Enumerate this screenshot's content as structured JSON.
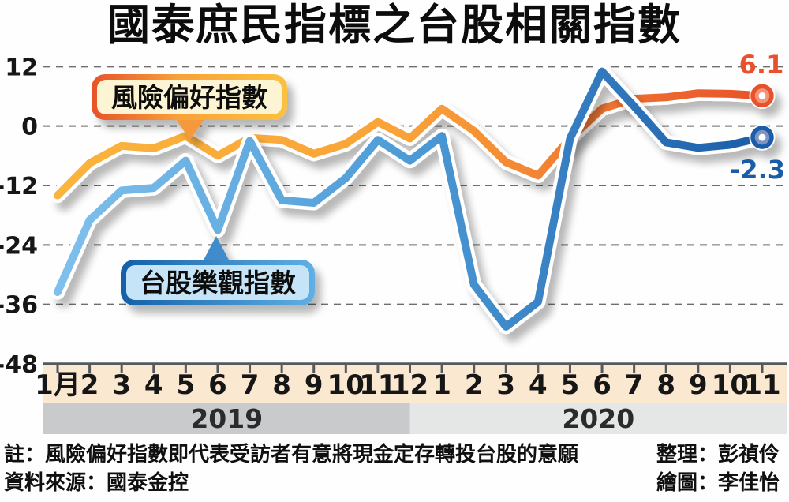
{
  "title": "國泰庶民指標之台股相關指數",
  "chart_data": {
    "type": "line",
    "title": "國泰庶民指標之台股相關指數",
    "x_labels": [
      "1月",
      "2",
      "3",
      "4",
      "5",
      "6",
      "7",
      "8",
      "9",
      "10",
      "11",
      "12",
      "1",
      "2",
      "3",
      "4",
      "5",
      "6",
      "7",
      "8",
      "9",
      "10",
      "11"
    ],
    "y_ticks": [
      "12",
      "0",
      "-12",
      "-24",
      "-36",
      "-48"
    ],
    "y_tick_values": [
      12,
      0,
      -12,
      -24,
      -36,
      -48
    ],
    "ylim": [
      -48,
      12
    ],
    "grid": "horizontal dashed",
    "legend_position": "callout bubbles on plot",
    "year_bands": [
      {
        "label": "2019",
        "from_month": 0,
        "to_month": 11
      },
      {
        "label": "2020",
        "from_month": 11,
        "to_month": 22
      }
    ],
    "series": [
      {
        "name": "風險偏好指數",
        "end_label": "6.1",
        "color_start": "#FBB43C",
        "color_mid": "#F9A238",
        "color_end": "#E8512B",
        "marker_ring": "#E8512B",
        "marker_fill": "#F2947A",
        "values": [
          -14,
          -7.5,
          -4,
          -4.5,
          -2,
          -6,
          -2.4,
          -2.8,
          -5.6,
          -3.6,
          0.8,
          -2.5,
          3.5,
          -1,
          -7.3,
          -10,
          -2.5,
          3.5,
          5.5,
          5.8,
          6.6,
          6.5,
          6.1
        ]
      },
      {
        "name": "台股樂觀指數",
        "end_label": "-2.3",
        "color_start": "#7FC0EC",
        "color_mid": "#4D9BD6",
        "color_end": "#1A5CA8",
        "marker_ring": "#1A5CA8",
        "marker_fill": "#8094C3",
        "values": [
          -33.5,
          -19,
          -13,
          -12.5,
          -7,
          -21,
          -3,
          -15,
          -15.5,
          -10.5,
          -2.8,
          -7,
          -2,
          -32,
          -40.5,
          -35.5,
          -2.5,
          11,
          4,
          -3.3,
          -4.4,
          -3.8,
          -2.3
        ]
      }
    ]
  },
  "colors": {
    "cream_band": "#FAE8D1",
    "band_2019": "#C9CACB",
    "band_2020": "#E5E6E6",
    "bubble_risk_fill": "#FDF4D3",
    "bubble_risk_pointer": "#F5993C",
    "bubble_optimism_fill": "#C6E4F8",
    "bubble_optimism_pointer": "#418CCB"
  },
  "footer": {
    "note": "註：風險偏好指數即代表受訪者有意將現金定存轉投台股的意願",
    "credit1": "整理：彭禎伶",
    "source": "資料來源：國泰金控",
    "credit2": "繪圖：李佳怡"
  }
}
